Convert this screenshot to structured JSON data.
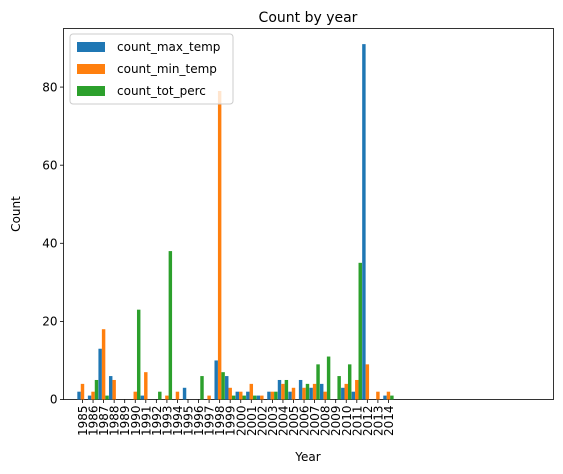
{
  "chart_data": {
    "type": "bar",
    "title": "Count by year",
    "xlabel": "Year",
    "ylabel": "Count",
    "ylim": [
      0,
      95
    ],
    "yticks": [
      0,
      20,
      40,
      60,
      80
    ],
    "legend_position": "top-left",
    "categories": [
      "1985",
      "1986",
      "1987",
      "1988",
      "1989",
      "1990",
      "1991",
      "1992",
      "1993",
      "1994",
      "1995",
      "1996",
      "1997",
      "1998",
      "1999",
      "2000",
      "2001",
      "2002",
      "2003",
      "2004",
      "2005",
      "2006",
      "2007",
      "2008",
      "2009",
      "2010",
      "2011",
      "2012",
      "2013",
      "2014"
    ],
    "series": [
      {
        "name": "count_max_temp",
        "color": "#1f77b4",
        "values": [
          2,
          1,
          13,
          6,
          0,
          0,
          1,
          0,
          0,
          0,
          3,
          0,
          0,
          10,
          6,
          2,
          2,
          1,
          2,
          5,
          2,
          5,
          3,
          4,
          0,
          3,
          2,
          91,
          0,
          1
        ]
      },
      {
        "name": "count_min_temp",
        "color": "#ff7f0e",
        "values": [
          4,
          2,
          18,
          5,
          0,
          2,
          7,
          0,
          1,
          2,
          0,
          0,
          1,
          79,
          3,
          2,
          4,
          1,
          2,
          4,
          3,
          3,
          4,
          2,
          0,
          4,
          5,
          9,
          2,
          2
        ]
      },
      {
        "name": "count_tot_perc",
        "color": "#2ca02c",
        "values": [
          0,
          5,
          1,
          0,
          0,
          23,
          0,
          2,
          38,
          0,
          0,
          6,
          0,
          7,
          1,
          1,
          1,
          0,
          2,
          5,
          0,
          4,
          9,
          11,
          6,
          9,
          35,
          0,
          0,
          1
        ]
      }
    ]
  }
}
